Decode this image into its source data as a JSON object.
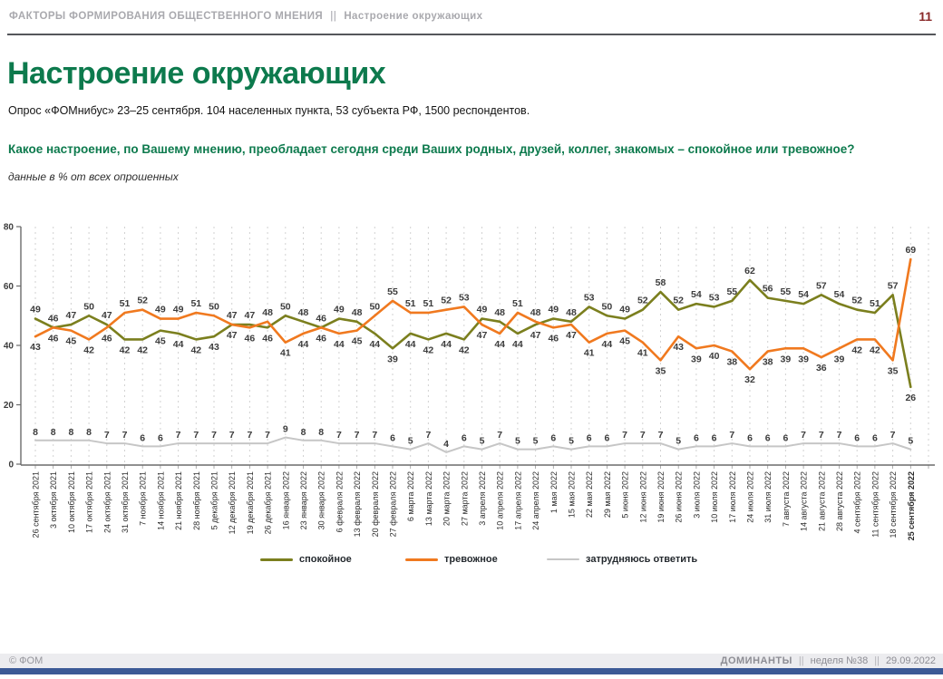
{
  "header": {
    "breadcrumb_left": "ФАКТОРЫ ФОРМИРОВАНИЯ ОБЩЕСТВЕННОГО МНЕНИЯ",
    "separator": "||",
    "breadcrumb_right": "Настроение окружающих",
    "page_number": "11"
  },
  "title": "Настроение окружающих",
  "subtitle": "Опрос «ФОМнибус» 23–25 сентября. 104 населенных пункта, 53 субъекта РФ, 1500 респондентов.",
  "question": "Какое настроение, по Вашему мнению, преобладает сегодня среди Ваших родных, друзей, коллег, знакомых – спокойное или тревожное?",
  "units_note": "данные в % от всех опрошенных",
  "colors": {
    "accent_green": "#0d7a4d",
    "line_calm": "#7b7f1e",
    "line_anxious": "#f0791f",
    "line_dk": "#c6c6c6",
    "grid": "#d2d2d2",
    "axis": "#6b6b6b",
    "label_text": "#3c3c3c"
  },
  "footer": {
    "left": "© ФОМ",
    "brand": "ДОМИНАНТЫ",
    "separator": "||",
    "week": "неделя №38",
    "date": "29.09.2022"
  },
  "chart_data": {
    "type": "line",
    "title": "Настроение окружающих",
    "ylim": [
      0,
      80
    ],
    "yticks": [
      0,
      20,
      40,
      60,
      80
    ],
    "grid": "vertical-dashed",
    "legend_position": "bottom",
    "categories": [
      "26 сентября 2021",
      "3 октября 2021",
      "10 октября 2021",
      "17 октября 2021",
      "24 октября 2021",
      "31 октября 2021",
      "7 ноября 2021",
      "14 ноября 2021",
      "21 ноября 2021",
      "28 ноября 2021",
      "5 декабря 2021",
      "12 декабря 2021",
      "19 декабря 2021",
      "26 декабря 2021",
      "16 января 2022",
      "23 января 2022",
      "30 января 2022",
      "6 февраля 2022",
      "13 февраля 2022",
      "20 февраля 2022",
      "27 февраля 2022",
      "6 марта 2022",
      "13 марта 2022",
      "20 марта 2022",
      "27 марта 2022",
      "3 апреля 2022",
      "10 апреля 2022",
      "17 апреля 2022",
      "24 апреля 2022",
      "1 мая 2022",
      "15 мая 2022",
      "22 мая 2022",
      "29 мая 2022",
      "5 июня 2022",
      "12 июня 2022",
      "19 июня 2022",
      "26 июня 2022",
      "3 июля 2022",
      "10 июля 2022",
      "17 июля 2022",
      "24 июля 2022",
      "31 июля 2022",
      "7 августа 2022",
      "14 августа 2022",
      "21 августа 2022",
      "28 августа 2022",
      "4 сентября 2022",
      "11 сентября 2022",
      "18 сентября 2022",
      "25 сентября 2022"
    ],
    "series": [
      {
        "name": "спокойное",
        "color_key": "line_calm",
        "values": [
          49,
          46,
          47,
          50,
          47,
          42,
          42,
          45,
          44,
          42,
          43,
          47,
          47,
          46,
          50,
          48,
          46,
          49,
          48,
          44,
          39,
          44,
          42,
          44,
          42,
          49,
          48,
          44,
          47,
          49,
          48,
          53,
          50,
          49,
          52,
          58,
          52,
          54,
          53,
          55,
          62,
          56,
          55,
          54,
          57,
          54,
          52,
          51,
          57,
          26
        ]
      },
      {
        "name": "тревожное",
        "color_key": "line_anxious",
        "values": [
          43,
          46,
          45,
          42,
          46,
          51,
          52,
          49,
          49,
          51,
          50,
          47,
          46,
          48,
          41,
          44,
          46,
          44,
          45,
          50,
          55,
          51,
          51,
          52,
          53,
          47,
          44,
          51,
          48,
          46,
          47,
          41,
          44,
          45,
          41,
          35,
          43,
          39,
          40,
          38,
          32,
          38,
          39,
          39,
          36,
          39,
          42,
          42,
          35,
          69
        ]
      },
      {
        "name": "затрудняюсь ответить",
        "color_key": "line_dk",
        "values": [
          8,
          8,
          8,
          8,
          7,
          7,
          6,
          6,
          7,
          7,
          7,
          7,
          7,
          7,
          9,
          8,
          8,
          7,
          7,
          7,
          6,
          5,
          7,
          4,
          6,
          5,
          7,
          5,
          5,
          6,
          5,
          6,
          6,
          7,
          7,
          7,
          5,
          6,
          6,
          7,
          6,
          6,
          6,
          7,
          7,
          7,
          6,
          6,
          7,
          5
        ]
      }
    ]
  }
}
